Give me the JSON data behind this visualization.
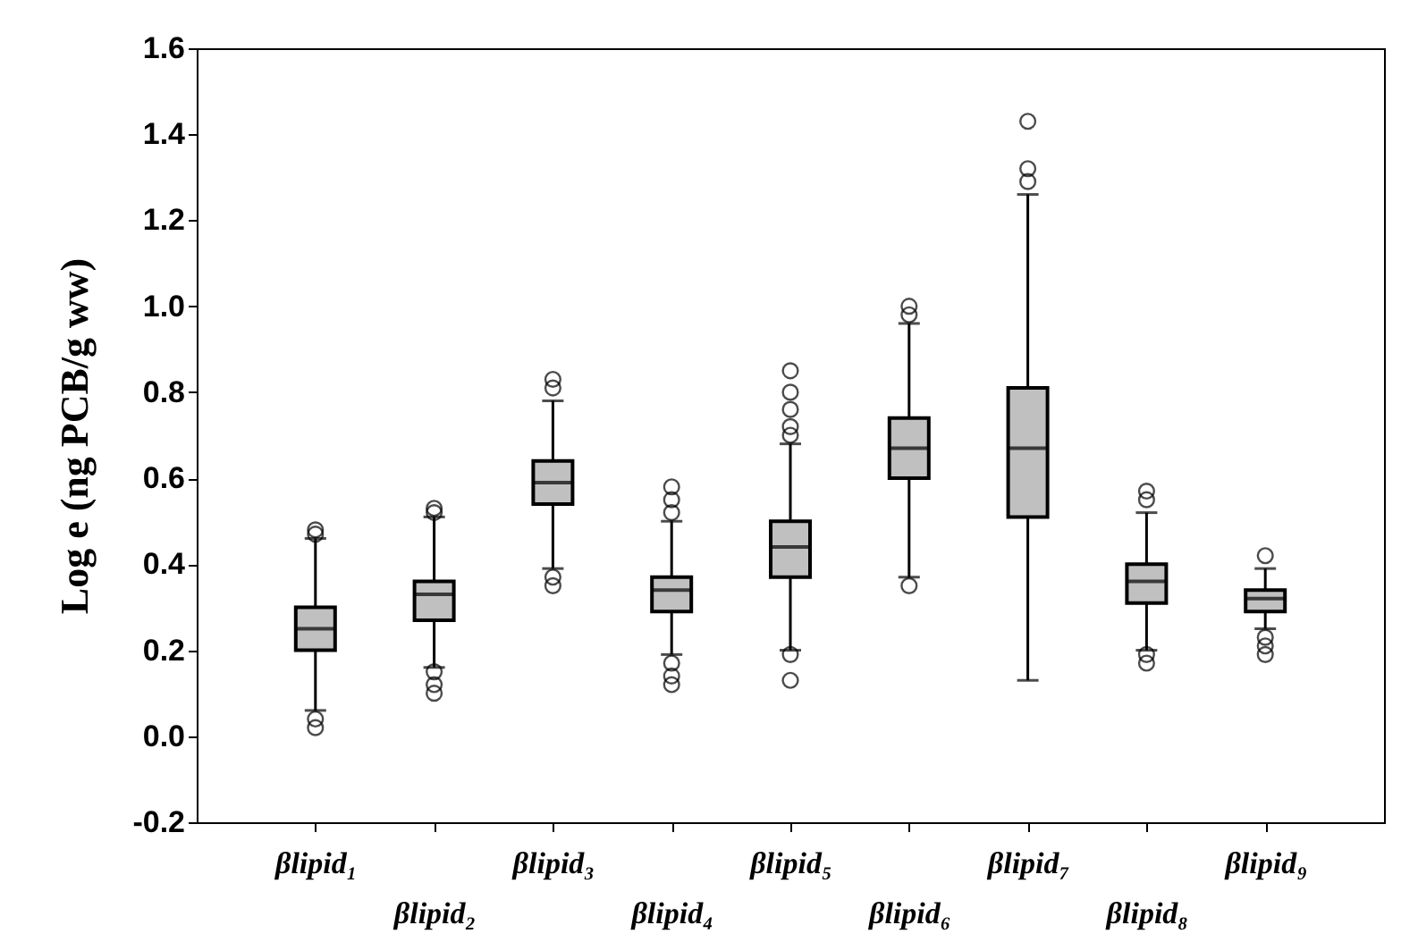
{
  "chart_data": {
    "type": "box",
    "ylabel": "Log e (ng PCB/g ww)",
    "categories": [
      "βlipid₁",
      "βlipid₂",
      "βlipid₃",
      "βlipid₄",
      "βlipid₅",
      "βlipid₆",
      "βlipid₇",
      "βlipid₈",
      "βlipid₉"
    ],
    "ylim": [
      -0.2,
      1.6
    ],
    "yticks": [
      {
        "value": -0.2,
        "label": "-0.2"
      },
      {
        "value": 0,
        "label": "0.0"
      },
      {
        "value": 0.2,
        "label": "0.2"
      },
      {
        "value": 0.4,
        "label": "0.4"
      },
      {
        "value": 0.6,
        "label": "0.6"
      },
      {
        "value": 0.8,
        "label": "0.8"
      },
      {
        "value": 1,
        "label": "1.0"
      },
      {
        "value": 1.2,
        "label": "1.2"
      },
      {
        "value": 1.4,
        "label": "1.4"
      },
      {
        "value": 1.6,
        "label": "1.6"
      }
    ],
    "grid": false,
    "color": "#c0c0c0",
    "boxes": [
      {
        "low": 0.06,
        "q1": 0.2,
        "median": 0.25,
        "q3": 0.3,
        "high": 0.46,
        "outliers": [
          0.04,
          0.02,
          0.47,
          0.48
        ]
      },
      {
        "low": 0.16,
        "q1": 0.27,
        "median": 0.33,
        "q3": 0.36,
        "high": 0.51,
        "outliers": [
          0.15,
          0.12,
          0.1,
          0.52,
          0.53
        ]
      },
      {
        "low": 0.39,
        "q1": 0.54,
        "median": 0.59,
        "q3": 0.64,
        "high": 0.78,
        "outliers": [
          0.37,
          0.35,
          0.81,
          0.83
        ]
      },
      {
        "low": 0.19,
        "q1": 0.29,
        "median": 0.34,
        "q3": 0.37,
        "high": 0.5,
        "outliers": [
          0.17,
          0.14,
          0.12,
          0.52,
          0.55,
          0.58
        ]
      },
      {
        "low": 0.2,
        "q1": 0.37,
        "median": 0.44,
        "q3": 0.5,
        "high": 0.68,
        "outliers": [
          0.19,
          0.13,
          0.7,
          0.72,
          0.76,
          0.8,
          0.85
        ]
      },
      {
        "low": 0.37,
        "q1": 0.6,
        "median": 0.67,
        "q3": 0.74,
        "high": 0.96,
        "outliers": [
          0.35,
          0.98,
          1.0
        ]
      },
      {
        "low": 0.13,
        "q1": 0.51,
        "median": 0.67,
        "q3": 0.81,
        "high": 1.26,
        "outliers": [
          1.29,
          1.32,
          1.43
        ]
      },
      {
        "low": 0.2,
        "q1": 0.31,
        "median": 0.36,
        "q3": 0.4,
        "high": 0.52,
        "outliers": [
          0.19,
          0.17,
          0.55,
          0.57
        ]
      },
      {
        "low": 0.25,
        "q1": 0.29,
        "median": 0.32,
        "q3": 0.34,
        "high": 0.39,
        "outliers": [
          0.23,
          0.21,
          0.19,
          0.42
        ]
      }
    ]
  }
}
